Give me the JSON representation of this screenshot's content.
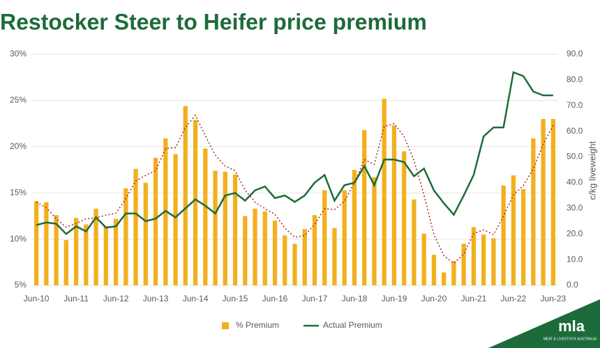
{
  "chart_data": {
    "type": "bar",
    "title": "Restocker Steer to Heifer price premium",
    "y2_label": "c/kg liveweight",
    "categories": [
      "Jun-10",
      null,
      null,
      null,
      "Jun-11",
      null,
      null,
      null,
      "Jun-12",
      null,
      null,
      null,
      "Jun-13",
      null,
      null,
      null,
      "Jun-14",
      null,
      null,
      null,
      "Jun-15",
      null,
      null,
      null,
      "Jun-16",
      null,
      null,
      null,
      "Jun-17",
      null,
      null,
      null,
      "Jun-18",
      null,
      null,
      null,
      "Jun-19",
      null,
      null,
      null,
      "Jun-20",
      null,
      null,
      null,
      "Jun-21",
      null,
      null,
      null,
      "Jun-22",
      null,
      null,
      null,
      "Jun-23"
    ],
    "series": [
      {
        "name": "% Premium",
        "type": "bar",
        "color": "#f2b01e",
        "values": [
          14.1,
          14.0,
          12.6,
          9.9,
          12.3,
          11.6,
          13.3,
          11.4,
          12.2,
          15.5,
          17.6,
          16.1,
          18.8,
          20.9,
          19.2,
          24.4,
          22.9,
          19.8,
          17.4,
          17.3,
          17.0,
          12.5,
          13.3,
          13.0,
          12.0,
          10.4,
          9.5,
          11.1,
          12.6,
          15.3,
          11.2,
          15.3,
          17.5,
          21.8,
          16.7,
          25.2,
          22.3,
          19.5,
          14.3,
          10.6,
          8.3,
          6.4,
          7.6,
          9.5,
          11.3,
          10.5,
          10.1,
          15.8,
          16.9,
          15.4,
          20.9,
          23.0,
          23.0
        ]
      },
      {
        "type": "line",
        "dashed": true,
        "color": "#b22222",
        "values": [
          14.0,
          13.4,
          12.2,
          11.3,
          11.7,
          12.2,
          12.3,
          12.6,
          12.8,
          14.4,
          16.3,
          16.9,
          17.4,
          19.8,
          19.9,
          22.1,
          23.4,
          21.2,
          19.1,
          17.9,
          17.4,
          15.3,
          14.0,
          13.3,
          12.7,
          11.2,
          10.2,
          10.4,
          11.6,
          13.3,
          13.2,
          14.1,
          16.1,
          18.6,
          18.1,
          22.2,
          22.5,
          21.1,
          18.5,
          14.8,
          10.5,
          8.2,
          7.4,
          8.4,
          10.6,
          11.0,
          10.5,
          12.5,
          14.8,
          15.8,
          17.6,
          20.3,
          22.3
        ]
      },
      {
        "name": "Actual Premium",
        "type": "line",
        "axis": "y2",
        "color": "#1d6b3a",
        "values": [
          23.5,
          24.5,
          24,
          20,
          23,
          21,
          26.5,
          22.5,
          23,
          28,
          28,
          25,
          26,
          29,
          26.5,
          30,
          33.5,
          31,
          28,
          35,
          36,
          33,
          37,
          38.5,
          34,
          35,
          32.5,
          35,
          40,
          43,
          33,
          39,
          40,
          46.5,
          39,
          49,
          49,
          48,
          42.5,
          45.5,
          37,
          32,
          27.5,
          35,
          43,
          58,
          61.5,
          61.5,
          83,
          81.5,
          75.5,
          74,
          74
        ]
      }
    ],
    "ylim": [
      5,
      30
    ],
    "yticks": [
      {
        "value": 5,
        "label": "5%"
      },
      {
        "value": 10,
        "label": "10%"
      },
      {
        "value": 15,
        "label": "15%"
      },
      {
        "value": 20,
        "label": "20%"
      },
      {
        "value": 25,
        "label": "25%"
      },
      {
        "value": 30,
        "label": "30%"
      }
    ],
    "y2lim": [
      0,
      90
    ],
    "y2ticks": [
      {
        "value": 0,
        "label": "0.0"
      },
      {
        "value": 10,
        "label": "10.0"
      },
      {
        "value": 20,
        "label": "20.0"
      },
      {
        "value": 30,
        "label": "30.0"
      },
      {
        "value": 40,
        "label": "40.0"
      },
      {
        "value": 50,
        "label": "50.0"
      },
      {
        "value": 60,
        "label": "60.0"
      },
      {
        "value": 70,
        "label": "70.0"
      },
      {
        "value": 80,
        "label": "80.0"
      },
      {
        "value": 90,
        "label": "90.0"
      }
    ],
    "grid": true,
    "legend": "bottom"
  },
  "logo": {
    "text": "mla",
    "subtitle": "MEAT & LIVESTOCK AUSTRALIA"
  }
}
